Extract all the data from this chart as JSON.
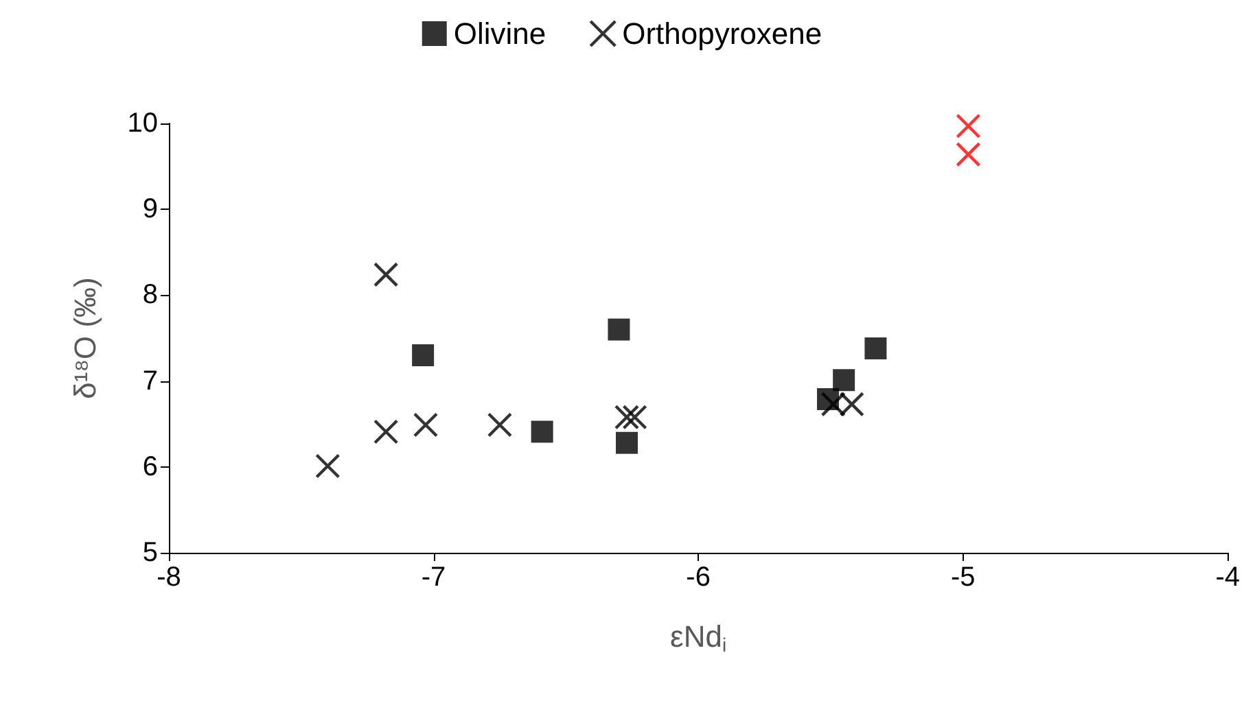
{
  "chart_data": {
    "type": "scatter",
    "xlabel": "εNd$_{i}$",
    "ylabel": "δ¹⁸O (‰)",
    "xlim": [
      -8,
      -4
    ],
    "xticks": [
      -8,
      -7,
      -6,
      -5,
      -4
    ],
    "ylim": [
      5,
      10
    ],
    "yticks": [
      5,
      6,
      7,
      8,
      9,
      10
    ],
    "grid": false,
    "legend": "top",
    "series": [
      {
        "name": "Olivine",
        "color": "#000000",
        "marker": "square",
        "x": [
          -7.04,
          -6.59,
          -6.3,
          -6.27,
          -5.51,
          -5.45,
          -5.33
        ],
        "values": [
          7.3,
          6.41,
          7.6,
          6.28,
          6.79,
          7.01,
          7.38
        ]
      },
      {
        "name": "Orthopyroxene",
        "color": "#000000",
        "marker": "cross",
        "x": [
          -7.4,
          -7.18,
          -7.18,
          -7.03,
          -6.75,
          -6.27,
          -6.24,
          -5.49,
          -5.42,
          -4.98,
          -4.98
        ],
        "values": [
          6.01,
          8.24,
          6.41,
          6.49,
          6.49,
          6.58,
          6.58,
          6.73,
          6.73,
          9.97,
          9.64
        ],
        "colors": [
          "#000000",
          "#000000",
          "#000000",
          "#000000",
          "#000000",
          "#000000",
          "#000000",
          "#000000",
          "#000000",
          "#ff0000",
          "#ff0000"
        ]
      }
    ]
  }
}
